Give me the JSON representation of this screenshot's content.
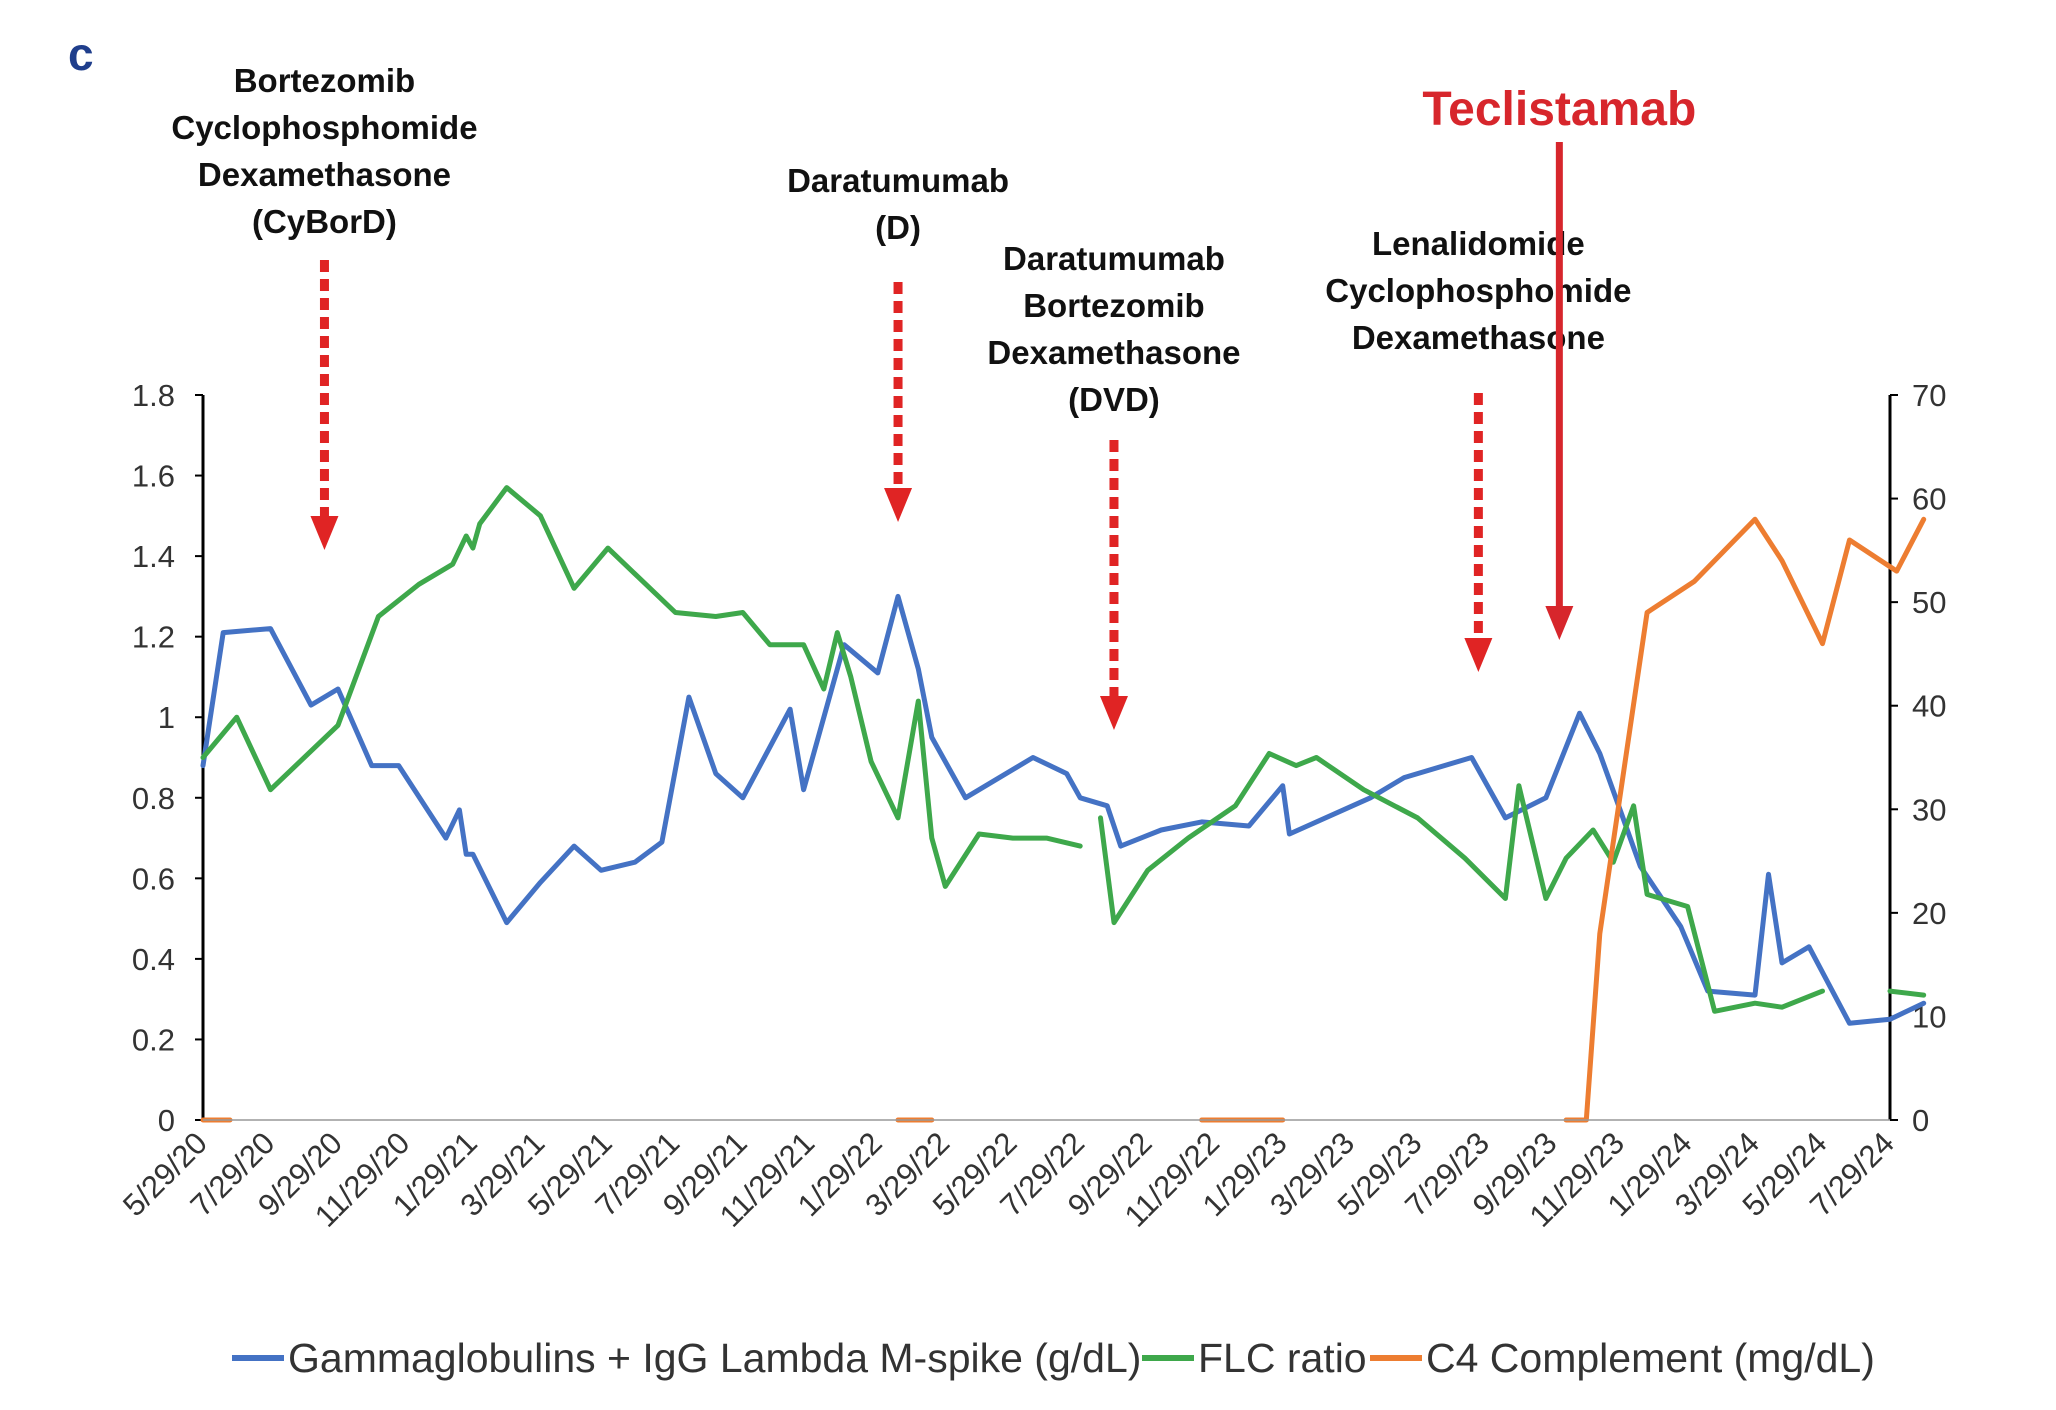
{
  "panel_label": "c",
  "colors": {
    "gamma": "#4472c4",
    "flc": "#3ea84b",
    "c4": "#ed7d31",
    "dashed_arrow": "#e02424",
    "teclistamab": "#d7262c"
  },
  "annotations": [
    {
      "lines": [
        "Bortezomib",
        "Cyclophosphomide",
        "Dexamethasone",
        "(CyBorD)"
      ],
      "date_index": 1.8,
      "style": "dashed"
    },
    {
      "lines": [
        "Daratumumab",
        "(D)"
      ],
      "date_index": 10.3,
      "style": "dashed"
    },
    {
      "lines": [
        "Daratumumab",
        "Bortezomib",
        "Dexamethasone",
        "(DVD)"
      ],
      "date_index": 13.5,
      "style": "dashed"
    },
    {
      "lines": [
        "Lenalidomide",
        "Cyclophosphomide",
        "Dexamethasone"
      ],
      "date_index": 18.9,
      "style": "dashed"
    },
    {
      "lines": [
        "Teclistamab"
      ],
      "date_index": 20.1,
      "style": "solid"
    }
  ],
  "legend": [
    {
      "label": "Gammaglobulins + IgG Lambda M-spike (g/dL)",
      "color_key": "gamma"
    },
    {
      "label": "FLC ratio",
      "color_key": "flc"
    },
    {
      "label": "C4 Complement (mg/dL)",
      "color_key": "c4"
    }
  ],
  "chart_data": {
    "type": "line",
    "x_is": "date index, 0 = 5/29/20, one unit per tick (2 months)",
    "categories": [
      "5/29/20",
      "7/29/20",
      "9/29/20",
      "11/29/20",
      "1/29/21",
      "3/29/21",
      "5/29/21",
      "7/29/21",
      "9/29/21",
      "11/29/21",
      "1/29/22",
      "3/29/22",
      "5/29/22",
      "7/29/22",
      "9/29/22",
      "11/29/22",
      "1/29/23",
      "3/29/23",
      "5/29/23",
      "7/29/23",
      "9/29/23",
      "11/29/23",
      "1/29/24",
      "3/29/24",
      "5/29/24",
      "7/29/24"
    ],
    "y_left": {
      "ticks": [
        "0",
        "0.2",
        "0.4",
        "0.6",
        "0.8",
        "1",
        "1.2",
        "1.4",
        "1.6",
        "1.8"
      ],
      "ylim": [
        0,
        1.8
      ]
    },
    "y_right": {
      "ticks": [
        "0",
        "10",
        "20",
        "30",
        "40",
        "50",
        "60",
        "70"
      ],
      "ylim": [
        0,
        70
      ]
    },
    "legend_position": "bottom",
    "grid": false,
    "series": [
      {
        "name": "Gammaglobulins + IgG Lambda M-spike (g/dL)",
        "axis": "left",
        "segments": [
          [
            [
              0,
              0.88
            ],
            [
              0.3,
              1.21
            ],
            [
              1.0,
              1.22
            ],
            [
              1.6,
              1.03
            ],
            [
              2.0,
              1.07
            ],
            [
              2.5,
              0.88
            ],
            [
              2.9,
              0.88
            ],
            [
              3.6,
              0.7
            ],
            [
              3.8,
              0.77
            ],
            [
              3.9,
              0.66
            ],
            [
              4.0,
              0.66
            ],
            [
              4.5,
              0.49
            ],
            [
              5.0,
              0.59
            ],
            [
              5.5,
              0.68
            ],
            [
              5.9,
              0.62
            ],
            [
              6.4,
              0.64
            ],
            [
              6.8,
              0.69
            ],
            [
              7.2,
              1.05
            ],
            [
              7.6,
              0.86
            ],
            [
              8.0,
              0.8
            ],
            [
              8.7,
              1.02
            ],
            [
              8.9,
              0.82
            ],
            [
              9.5,
              1.18
            ],
            [
              10.0,
              1.11
            ],
            [
              10.3,
              1.3
            ],
            [
              10.6,
              1.12
            ],
            [
              10.8,
              0.95
            ],
            [
              11.3,
              0.8
            ],
            [
              11.7,
              0.84
            ],
            [
              12.3,
              0.9
            ],
            [
              12.8,
              0.86
            ],
            [
              13.0,
              0.8
            ],
            [
              13.4,
              0.78
            ],
            [
              13.6,
              0.68
            ],
            [
              14.2,
              0.72
            ],
            [
              14.8,
              0.74
            ],
            [
              15.5,
              0.73
            ],
            [
              16.0,
              0.83
            ],
            [
              16.1,
              0.71
            ],
            [
              17.3,
              0.8
            ],
            [
              17.8,
              0.85
            ],
            [
              18.8,
              0.9
            ],
            [
              19.3,
              0.75
            ],
            [
              19.9,
              0.8
            ],
            [
              20.4,
              1.01
            ],
            [
              20.7,
              0.91
            ],
            [
              21.0,
              0.77
            ],
            [
              21.3,
              0.63
            ],
            [
              21.9,
              0.48
            ],
            [
              22.3,
              0.32
            ],
            [
              23.0,
              0.31
            ],
            [
              23.2,
              0.61
            ],
            [
              23.4,
              0.39
            ],
            [
              23.8,
              0.43
            ],
            [
              24.4,
              0.24
            ],
            [
              25.0,
              0.25
            ],
            [
              25.5,
              0.29
            ]
          ]
        ]
      },
      {
        "name": "FLC ratio",
        "axis": "left",
        "segments": [
          [
            [
              0,
              0.9
            ],
            [
              0.5,
              1.0
            ],
            [
              1.0,
              0.82
            ],
            [
              2.0,
              0.98
            ],
            [
              2.6,
              1.25
            ],
            [
              3.2,
              1.33
            ],
            [
              3.7,
              1.38
            ],
            [
              3.9,
              1.45
            ],
            [
              4.0,
              1.42
            ],
            [
              4.1,
              1.48
            ],
            [
              4.5,
              1.57
            ],
            [
              5.0,
              1.5
            ],
            [
              5.5,
              1.32
            ],
            [
              6.0,
              1.42
            ],
            [
              7.0,
              1.26
            ],
            [
              7.6,
              1.25
            ],
            [
              8.0,
              1.26
            ],
            [
              8.4,
              1.18
            ],
            [
              8.9,
              1.18
            ],
            [
              9.2,
              1.07
            ],
            [
              9.4,
              1.21
            ],
            [
              9.6,
              1.1
            ],
            [
              9.9,
              0.89
            ],
            [
              10.3,
              0.75
            ],
            [
              10.6,
              1.04
            ],
            [
              10.8,
              0.7
            ],
            [
              11.0,
              0.58
            ],
            [
              11.5,
              0.71
            ],
            [
              12.0,
              0.7
            ],
            [
              12.5,
              0.7
            ],
            [
              13.0,
              0.68
            ]
          ],
          [
            [
              13.3,
              0.75
            ],
            [
              13.5,
              0.49
            ],
            [
              14.0,
              0.62
            ],
            [
              14.6,
              0.7
            ],
            [
              15.3,
              0.78
            ],
            [
              15.8,
              0.91
            ],
            [
              16.2,
              0.88
            ],
            [
              16.5,
              0.9
            ],
            [
              17.2,
              0.82
            ],
            [
              18.0,
              0.75
            ],
            [
              18.7,
              0.65
            ],
            [
              19.3,
              0.55
            ],
            [
              19.5,
              0.83
            ],
            [
              19.9,
              0.55
            ],
            [
              20.2,
              0.65
            ],
            [
              20.6,
              0.72
            ],
            [
              20.9,
              0.64
            ],
            [
              21.2,
              0.78
            ],
            [
              21.4,
              0.56
            ],
            [
              22.0,
              0.53
            ],
            [
              22.4,
              0.27
            ],
            [
              23.0,
              0.29
            ],
            [
              23.4,
              0.28
            ],
            [
              24.0,
              0.32
            ]
          ],
          [
            [
              25.0,
              0.32
            ],
            [
              25.5,
              0.31
            ]
          ]
        ]
      },
      {
        "name": "C4 Complement (mg/dL)",
        "axis": "right",
        "segments": [
          [
            [
              0,
              0
            ],
            [
              0.4,
              0
            ]
          ],
          [
            [
              10.3,
              0
            ],
            [
              10.8,
              0
            ]
          ],
          [
            [
              14.8,
              0
            ],
            [
              16.0,
              0
            ]
          ],
          [
            [
              20.2,
              0
            ],
            [
              20.5,
              0
            ],
            [
              20.7,
              18
            ],
            [
              21.4,
              49
            ],
            [
              22.1,
              52
            ],
            [
              23.0,
              58
            ],
            [
              23.4,
              54
            ],
            [
              24.0,
              46
            ],
            [
              24.4,
              56
            ],
            [
              25.1,
              53
            ],
            [
              25.5,
              58
            ]
          ]
        ]
      }
    ]
  }
}
